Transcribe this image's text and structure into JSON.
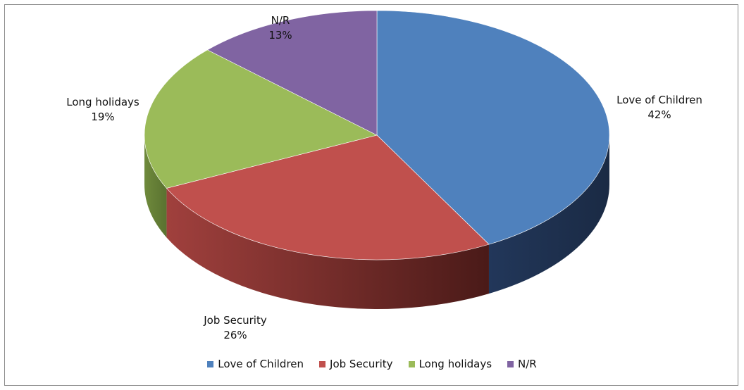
{
  "chart_data": {
    "type": "pie",
    "title": "",
    "slices": [
      {
        "label": "Love of Children",
        "value": 42,
        "value_label": "42%",
        "color": "#4f81bd"
      },
      {
        "label": "Job Security",
        "value": 26,
        "value_label": "26%",
        "color": "#c0504d"
      },
      {
        "label": "Long holidays",
        "value": 19,
        "value_label": "19%",
        "color": "#9bbb59"
      },
      {
        "label": "N/R",
        "value": 13,
        "value_label": "13%",
        "color": "#8064a2"
      }
    ],
    "style": "3d-tilted",
    "legend_position": "bottom"
  }
}
